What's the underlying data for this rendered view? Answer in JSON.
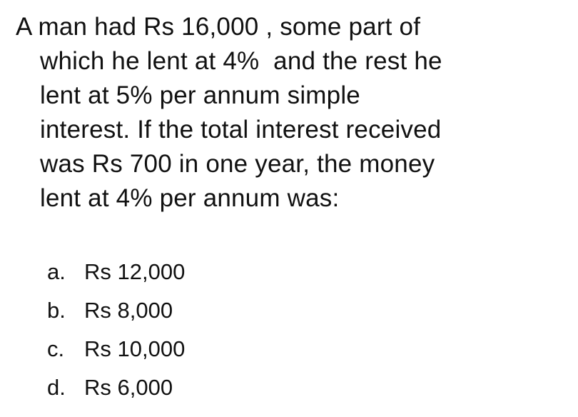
{
  "question": {
    "lines": [
      "A man had Rs 16,000 , some part of",
      "which he lent at 4%  and the rest he",
      "lent at 5% per annum simple",
      "interest. If the total interest received",
      "was Rs 700 in one year, the money",
      "lent at 4% per annum was:"
    ]
  },
  "options": [
    {
      "letter": "a.",
      "text": "Rs 12,000"
    },
    {
      "letter": "b.",
      "text": "Rs 8,000"
    },
    {
      "letter": "c.",
      "text": "Rs 10,000"
    },
    {
      "letter": "d.",
      "text": "Rs 6,000"
    }
  ]
}
